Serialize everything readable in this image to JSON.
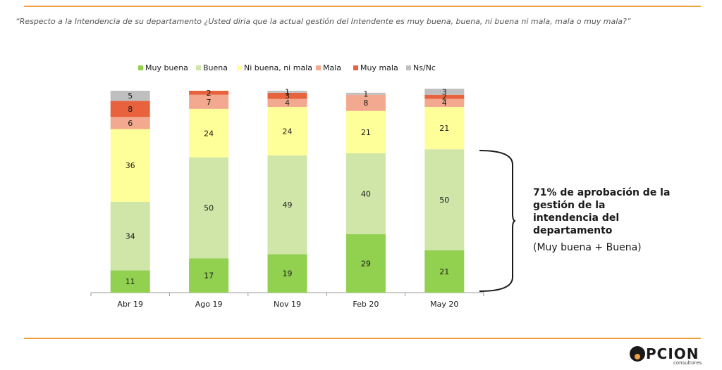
{
  "question": "“Respecto a la Intendencia de su departamento ¿Usted diria que la actual gestión del Intendente es muy buena, buena, ni buena ni mala, mala o muy mala?”",
  "annotation": {
    "title": "71% de aprobación de la gestión de la intendencia del departamento",
    "subtitle": "(Muy buena + Buena)"
  },
  "logo": {
    "word": "PCION",
    "sub": "consultores"
  },
  "colors": {
    "accent_rule": "#f0a040",
    "muy_buena": "#92d050",
    "buena": "#cfe6a8",
    "ni_buena_ni_mala": "#ffff99",
    "mala": "#f2a98f",
    "muy_mala": "#e8623e",
    "ns_nc": "#bfbfbf"
  },
  "chart_data": {
    "type": "bar",
    "stacked": true,
    "title": "",
    "xlabel": "",
    "ylabel": "",
    "ylim": [
      0,
      100
    ],
    "legend_position": "top",
    "categories": [
      "Abr 19",
      "Ago 19",
      "Nov 19",
      "Feb 20",
      "May 20"
    ],
    "series": [
      {
        "name": "Muy buena",
        "color": "#92d050",
        "values": [
          11,
          17,
          19,
          29,
          21
        ]
      },
      {
        "name": "Buena",
        "color": "#cfe6a8",
        "values": [
          34,
          50,
          49,
          40,
          50
        ]
      },
      {
        "name": "Ni buena, ni mala",
        "color": "#ffff99",
        "values": [
          36,
          24,
          24,
          21,
          21
        ]
      },
      {
        "name": "Mala",
        "color": "#f2a98f",
        "values": [
          6,
          7,
          4,
          8,
          4
        ]
      },
      {
        "name": "Muy mala",
        "color": "#e8623e",
        "values": [
          8,
          2,
          3,
          0,
          2
        ]
      },
      {
        "name": "Ns/Nc",
        "color": "#bfbfbf",
        "values": [
          5,
          0,
          1,
          1,
          3
        ]
      }
    ],
    "data_labels": [
      [
        "11",
        "34",
        "36",
        "6",
        "8",
        "5"
      ],
      [
        "17",
        "50",
        "24",
        "7",
        "2",
        ""
      ],
      [
        "19",
        "49",
        "24",
        "4",
        "3",
        "1"
      ],
      [
        "29",
        "40",
        "21",
        "8",
        "",
        "1"
      ],
      [
        "21",
        "50",
        "21",
        "4",
        "2",
        "3"
      ]
    ]
  }
}
